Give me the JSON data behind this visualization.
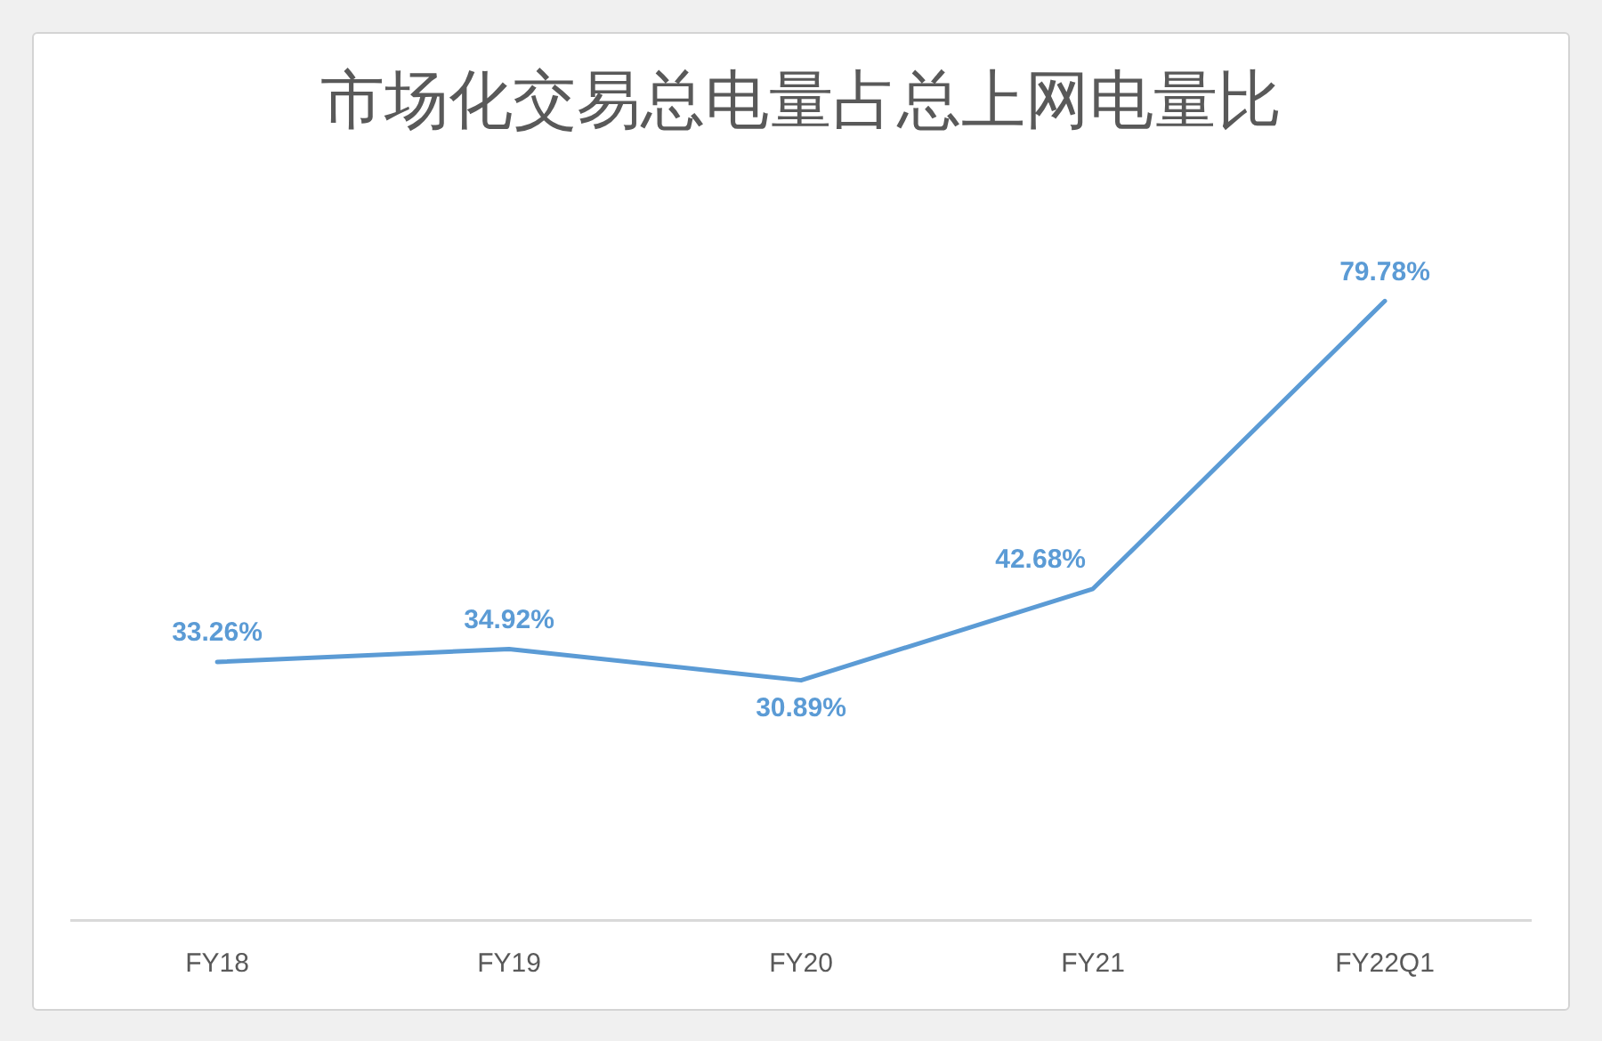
{
  "chart_data": {
    "type": "line",
    "title": "市场化交易总电量占总上网电量比",
    "categories": [
      "FY18",
      "FY19",
      "FY20",
      "FY21",
      "FY22Q1"
    ],
    "values": [
      33.26,
      34.92,
      30.89,
      42.68,
      79.78
    ],
    "value_labels": [
      "33.26%",
      "34.92%",
      "30.89%",
      "42.68%",
      "79.78%"
    ],
    "color": "#5b9bd5",
    "tick_labels": "x"
  }
}
